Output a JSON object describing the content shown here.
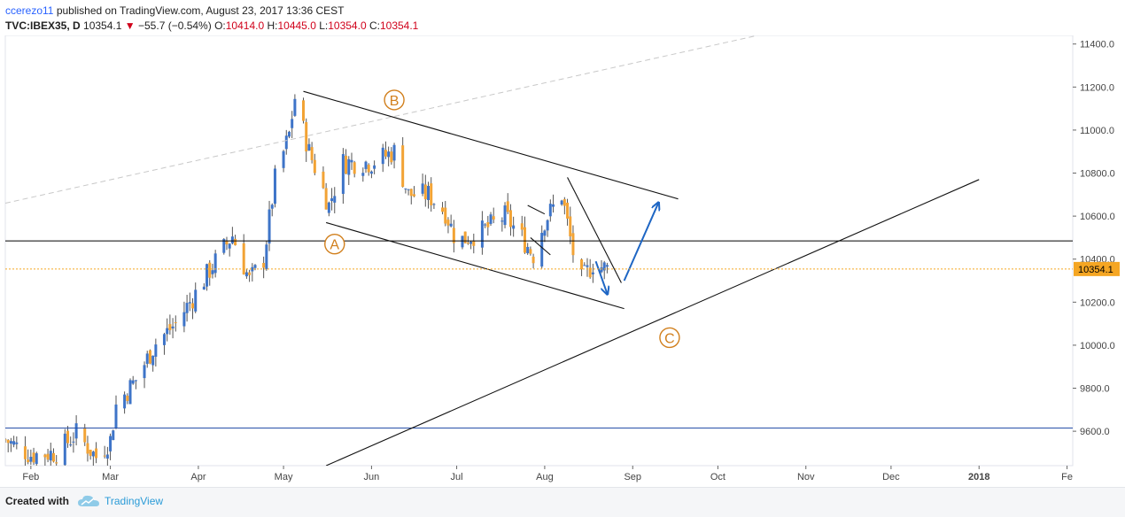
{
  "header": {
    "author": "ccerezo11",
    "published_text": "published on TradingView.com, August 23, 2017 13:36 CEST",
    "symbol": "TVC:IBEX35, D",
    "price": "10354.1",
    "change": "−55.7 (−0.54%)",
    "open_label": "O:",
    "open_value": "10414.0",
    "high_label": "H:",
    "high_value": "10445.0",
    "low_label": "L:",
    "low_value": "10354.0",
    "close_label": "C:",
    "close_value": "10354.1"
  },
  "footer": {
    "created_with": "Created with",
    "brand": "TradingView"
  },
  "colors": {
    "up": "#3e74c8",
    "down": "#f2a335",
    "wave_label": "#d17f1c",
    "arrow": "#1e66c4",
    "price_line": "#f5a623",
    "level_line": "#000000",
    "support_line": "#2850a8"
  },
  "chart_data": {
    "type": "candlestick",
    "y_range": [
      9440,
      11440
    ],
    "y_ticks": [
      "11400.0",
      "11200.0",
      "11000.0",
      "10800.0",
      "10600.0",
      "10400.0",
      "10200.0",
      "10000.0",
      "9800.0",
      "9600.0"
    ],
    "y_tick_values": [
      11400,
      11200,
      11000,
      10800,
      10600,
      10400,
      10200,
      10000,
      9800,
      9600
    ],
    "x_range": [
      "2017-01-23",
      "2018-02-03"
    ],
    "x_ticks": [
      "Feb",
      "Mar",
      "Apr",
      "May",
      "Jun",
      "Jul",
      "Aug",
      "Sep",
      "Oct",
      "Nov",
      "Dec",
      "2018",
      "Fe"
    ],
    "x_tick_dates": [
      "2017-02-01",
      "2017-03-01",
      "2017-04-01",
      "2017-05-01",
      "2017-06-01",
      "2017-07-01",
      "2017-08-01",
      "2017-09-01",
      "2017-10-01",
      "2017-11-01",
      "2017-12-01",
      "2018-01-01",
      "2018-02-01"
    ],
    "last_price_label": "10354.1",
    "last_price": 10354.1,
    "horizontal_levels": [
      10485,
      9615
    ],
    "candle_anchors": [
      {
        "date": "2017-01-23",
        "close": 9560
      },
      {
        "date": "2017-02-01",
        "close": 9490
      },
      {
        "date": "2017-02-10",
        "close": 9500
      },
      {
        "date": "2017-02-17",
        "close": 9590
      },
      {
        "date": "2017-02-24",
        "close": 9480
      },
      {
        "date": "2017-03-01",
        "close": 9560
      },
      {
        "date": "2017-03-03",
        "close": 9720
      },
      {
        "date": "2017-03-10",
        "close": 9840
      },
      {
        "date": "2017-03-17",
        "close": 10010
      },
      {
        "date": "2017-03-24",
        "close": 10100
      },
      {
        "date": "2017-03-31",
        "close": 10240
      },
      {
        "date": "2017-04-06",
        "close": 10370
      },
      {
        "date": "2017-04-13",
        "close": 10510
      },
      {
        "date": "2017-04-19",
        "close": 10300
      },
      {
        "date": "2017-04-24",
        "close": 10400
      },
      {
        "date": "2017-04-28",
        "close": 10770
      },
      {
        "date": "2017-05-03",
        "close": 10980
      },
      {
        "date": "2017-05-05",
        "close": 11150
      },
      {
        "date": "2017-05-10",
        "close": 10900
      },
      {
        "date": "2017-05-17",
        "close": 10650
      },
      {
        "date": "2017-05-22",
        "close": 10850
      },
      {
        "date": "2017-06-01",
        "close": 10850
      },
      {
        "date": "2017-06-09",
        "close": 10900
      },
      {
        "date": "2017-06-14",
        "close": 10700
      },
      {
        "date": "2017-06-21",
        "close": 10700
      },
      {
        "date": "2017-06-27",
        "close": 10620
      },
      {
        "date": "2017-07-01",
        "close": 10480
      },
      {
        "date": "2017-07-10",
        "close": 10530
      },
      {
        "date": "2017-07-18",
        "close": 10600
      },
      {
        "date": "2017-07-24",
        "close": 10500
      },
      {
        "date": "2017-07-28",
        "close": 10420
      },
      {
        "date": "2017-08-01",
        "close": 10580
      },
      {
        "date": "2017-08-07",
        "close": 10700
      },
      {
        "date": "2017-08-11",
        "close": 10430
      },
      {
        "date": "2017-08-14",
        "close": 10300
      },
      {
        "date": "2017-08-18",
        "close": 10380
      },
      {
        "date": "2017-08-23",
        "close": 10354
      }
    ],
    "trendlines": [
      {
        "from": {
          "date": "2017-05-08",
          "value": 11180
        },
        "to": {
          "date": "2017-09-17",
          "value": 10680
        }
      },
      {
        "from": {
          "date": "2017-05-16",
          "value": 10570
        },
        "to": {
          "date": "2017-08-29",
          "value": 10170
        }
      },
      {
        "from": {
          "date": "2017-08-09",
          "value": 10780
        },
        "to": {
          "date": "2017-08-28",
          "value": 10290
        }
      },
      {
        "from": {
          "date": "2017-05-16",
          "value": 9440
        },
        "to": {
          "date": "2018-01-01",
          "value": 10770
        }
      },
      {
        "from": {
          "date": "2017-07-26",
          "value": 10650
        },
        "to": {
          "date": "2017-08-01",
          "value": 10610
        }
      },
      {
        "from": {
          "date": "2017-07-27",
          "value": 10500
        },
        "to": {
          "date": "2017-08-03",
          "value": 10420
        }
      }
    ],
    "dashed_lines": [
      {
        "from": {
          "date": "2017-01-23",
          "value": 10660
        },
        "to": {
          "date": "2017-10-15",
          "value": 11440
        }
      }
    ],
    "arrows": [
      {
        "from": {
          "date": "2017-08-19",
          "value": 10390
        },
        "to": {
          "date": "2017-08-23",
          "value": 10240
        }
      },
      {
        "from": {
          "date": "2017-08-29",
          "value": 10300
        },
        "to": {
          "date": "2017-09-10",
          "value": 10660
        }
      }
    ],
    "annotations": [
      {
        "label": "A",
        "date": "2017-05-19",
        "value": 10470
      },
      {
        "label": "B",
        "date": "2017-06-09",
        "value": 11140
      },
      {
        "label": "C",
        "date": "2017-09-14",
        "value": 10035
      }
    ]
  }
}
